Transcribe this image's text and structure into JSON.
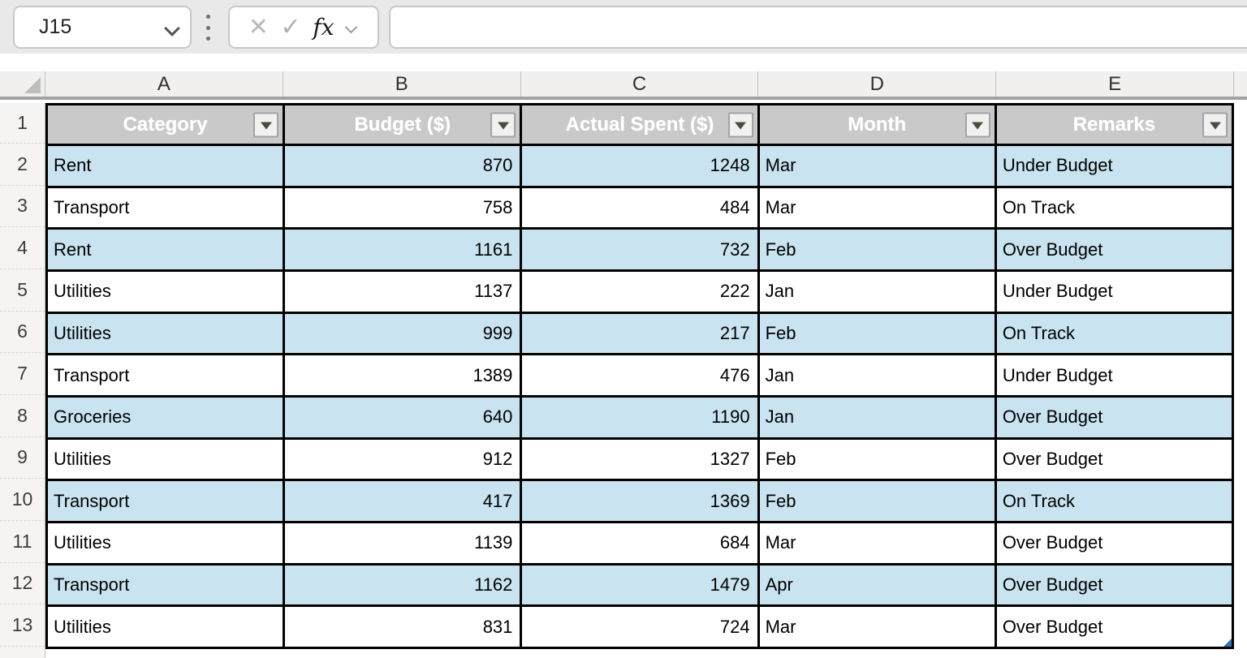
{
  "toolbar": {
    "name_box_value": "J15",
    "fx_label": "fx",
    "formula_bar_value": "",
    "cancel_icon": "✕",
    "enter_icon": "✓"
  },
  "sheet": {
    "column_letters": [
      "A",
      "B",
      "C",
      "D",
      "E"
    ],
    "row_numbers": [
      "1",
      "2",
      "3",
      "4",
      "5",
      "6",
      "7",
      "8",
      "9",
      "10",
      "11",
      "12",
      "13"
    ]
  },
  "table": {
    "headers": [
      "Category",
      "Budget ($)",
      "Actual Spent ($)",
      "Month",
      "Remarks"
    ],
    "column_alignments": [
      "left",
      "right",
      "right",
      "left",
      "left"
    ],
    "rows": [
      [
        "Rent",
        "870",
        "1248",
        "Mar",
        "Under Budget"
      ],
      [
        "Transport",
        "758",
        "484",
        "Mar",
        "On Track"
      ],
      [
        "Rent",
        "1161",
        "732",
        "Feb",
        "Over Budget"
      ],
      [
        "Utilities",
        "1137",
        "222",
        "Jan",
        "Under Budget"
      ],
      [
        "Utilities",
        "999",
        "217",
        "Feb",
        "On Track"
      ],
      [
        "Transport",
        "1389",
        "476",
        "Jan",
        "Under Budget"
      ],
      [
        "Groceries",
        "640",
        "1190",
        "Jan",
        "Over Budget"
      ],
      [
        "Utilities",
        "912",
        "1327",
        "Feb",
        "Over Budget"
      ],
      [
        "Transport",
        "417",
        "1369",
        "Feb",
        "On Track"
      ],
      [
        "Utilities",
        "1139",
        "684",
        "Mar",
        "Over Budget"
      ],
      [
        "Transport",
        "1162",
        "1479",
        "Apr",
        "Over Budget"
      ],
      [
        "Utilities",
        "831",
        "724",
        "Mar",
        "Over Budget"
      ]
    ]
  },
  "colors": {
    "header_fill": "#C9C9C9",
    "band_fill": "#C9E3F1",
    "grid_border": "#000000",
    "resize_handle_accent": "#2E75B6",
    "toolbar_bg": "#E9E9E9"
  }
}
